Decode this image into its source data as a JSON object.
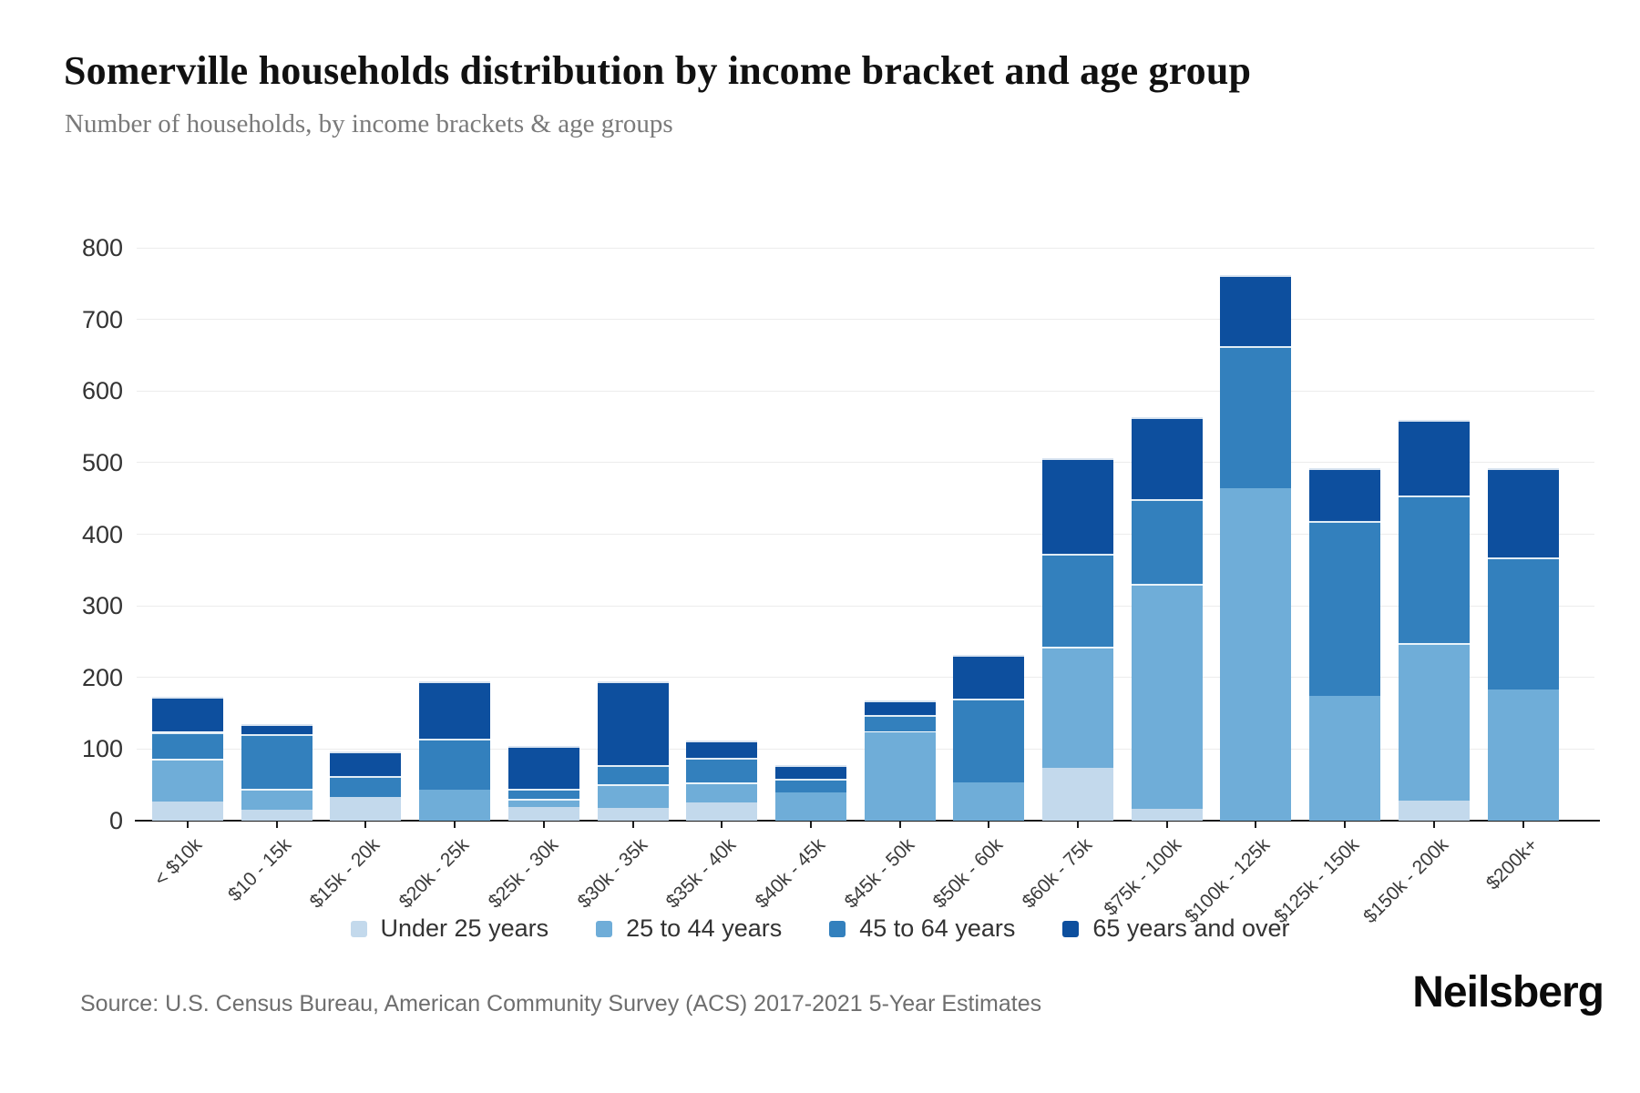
{
  "page": {
    "title": "Somerville households distribution by income bracket and age group",
    "subtitle": "Number of households, by income brackets & age groups",
    "source": "Source: U.S. Census Bureau, American Community Survey (ACS) 2017-2021 5-Year Estimates",
    "brand": "Neilsberg"
  },
  "colors": {
    "under25": "#c3d9ec",
    "age25to44": "#6fadd8",
    "age45to64": "#3380bd",
    "age65plus": "#0d4f9e",
    "grid": "#ececec",
    "axis": "#1a1a1a"
  },
  "chart_data": {
    "type": "bar",
    "stacked": true,
    "title": "Somerville households distribution by income bracket and age group",
    "subtitle": "Number of households, by income brackets & age groups",
    "xlabel": "",
    "ylabel": "Number of households",
    "ylim": [
      0,
      800
    ],
    "yticks": [
      0,
      100,
      200,
      300,
      400,
      500,
      600,
      700,
      800
    ],
    "grid": "horizontal",
    "legend_position": "bottom",
    "categories": [
      "< $10k",
      "$10 - 15k",
      "$15k - 20k",
      "$20k - 25k",
      "$25k - 30k",
      "$30k - 35k",
      "$35k - 40k",
      "$40k - 45k",
      "$45k - 50k",
      "$50k - 60k",
      "$60k - 75k",
      "$75k - 100k",
      "$100k - 125k",
      "$125k - 150k",
      "$150k - 200k",
      "$200k+"
    ],
    "series": [
      {
        "name": "Under 25 years",
        "color_key": "under25",
        "values": [
          27,
          15,
          33,
          0,
          19,
          18,
          25,
          0,
          0,
          0,
          74,
          17,
          0,
          0,
          28,
          0
        ]
      },
      {
        "name": "25 to 44 years",
        "color_key": "age25to44",
        "values": [
          59,
          30,
          0,
          43,
          11,
          33,
          28,
          40,
          124,
          53,
          169,
          314,
          464,
          174,
          220,
          183
        ]
      },
      {
        "name": "45 to 64 years",
        "color_key": "age45to64",
        "values": [
          38,
          76,
          29,
          72,
          14,
          26,
          35,
          19,
          24,
          118,
          130,
          118,
          199,
          244,
          206,
          184
        ]
      },
      {
        "name": "65 years and over",
        "color_key": "age65plus",
        "values": [
          49,
          14,
          35,
          80,
          60,
          118,
          24,
          19,
          20,
          61,
          133,
          114,
          99,
          74,
          106,
          125
        ]
      }
    ],
    "totals": [
      173,
      135,
      97,
      195,
      104,
      195,
      112,
      78,
      168,
      232,
      506,
      563,
      762,
      492,
      560,
      492
    ]
  }
}
